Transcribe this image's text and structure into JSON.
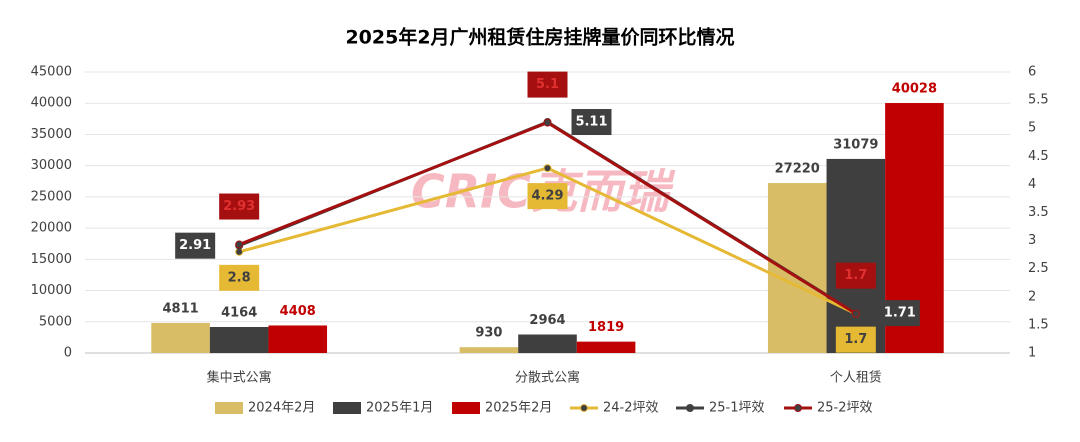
{
  "chart_data": {
    "type": "combo",
    "title": "2025年2月广州租赁住房挂牌量价同环比情况",
    "watermark": "CRIC克而瑞",
    "categories": [
      "集中式公寓",
      "分散式公寓",
      "个人租赁"
    ],
    "series": [
      {
        "name": "2024年2月",
        "type": "bar",
        "color": "#d9bc66",
        "label_color": "#404040",
        "values": [
          4811,
          930,
          27220
        ]
      },
      {
        "name": "2025年1月",
        "type": "bar",
        "color": "#3f3f3f",
        "label_color": "#404040",
        "values": [
          4164,
          2964,
          31079
        ]
      },
      {
        "name": "2025年2月",
        "type": "bar",
        "color": "#c00000",
        "label_color": "#c00000",
        "values": [
          4408,
          1819,
          40028
        ]
      },
      {
        "name": "24-2坪效",
        "type": "line",
        "axis": "y2",
        "color": "#e6b935",
        "values": [
          2.8,
          4.29,
          1.7
        ]
      },
      {
        "name": "25-1坪效",
        "type": "line",
        "axis": "y2",
        "color": "#404040",
        "values": [
          2.91,
          5.11,
          1.71
        ]
      },
      {
        "name": "25-2坪效",
        "type": "line",
        "axis": "y2",
        "color": "#a50f0f",
        "values": [
          2.93,
          5.1,
          1.7
        ]
      }
    ],
    "ylim": [
      0,
      45000
    ],
    "yticks": [
      0,
      5000,
      10000,
      15000,
      20000,
      25000,
      30000,
      35000,
      40000,
      45000
    ],
    "y2lim": [
      1,
      6
    ],
    "y2ticks": [
      1,
      1.5,
      2,
      2.5,
      3,
      3.5,
      4,
      4.5,
      5,
      5.5,
      6
    ],
    "grid": true
  }
}
